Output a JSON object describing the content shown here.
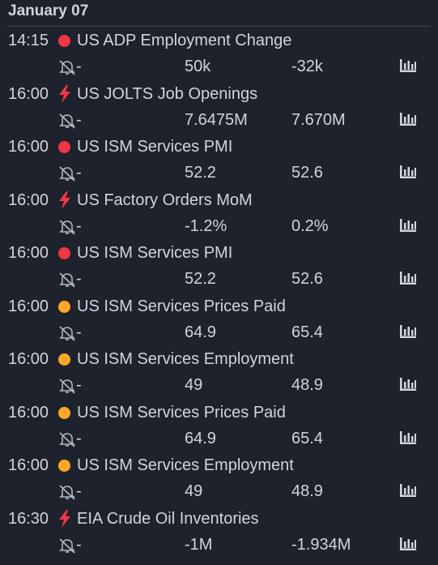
{
  "header": {
    "title": "January 07"
  },
  "events": [
    {
      "time": "14:15",
      "title": "US ADP Employment Change",
      "actual": "-",
      "forecast": "50k",
      "previous": "-32k"
    },
    {
      "time": "16:00",
      "title": "US JOLTS Job Openings",
      "actual": "-",
      "forecast": "7.6475M",
      "previous": "7.670M"
    },
    {
      "time": "16:00",
      "title": "US ISM Services PMI",
      "actual": "-",
      "forecast": "52.2",
      "previous": "52.6"
    },
    {
      "time": "16:00",
      "title": "US Factory Orders MoM",
      "actual": "-",
      "forecast": "-1.2%",
      "previous": "0.2%"
    },
    {
      "time": "16:00",
      "title": "US ISM Services PMI",
      "actual": "-",
      "forecast": "52.2",
      "previous": "52.6"
    },
    {
      "time": "16:00",
      "title": "US ISM Services Prices Paid",
      "actual": "-",
      "forecast": "64.9",
      "previous": "65.4"
    },
    {
      "time": "16:00",
      "title": "US ISM Services Employment",
      "actual": "-",
      "forecast": "49",
      "previous": "48.9"
    },
    {
      "time": "16:00",
      "title": "US ISM Services Prices Paid",
      "actual": "-",
      "forecast": "64.9",
      "previous": "65.4"
    },
    {
      "time": "16:00",
      "title": "US ISM Services Employment",
      "actual": "-",
      "forecast": "49",
      "previous": "48.9"
    },
    {
      "time": "16:30",
      "title": "EIA Crude Oil Inventories",
      "actual": "-",
      "forecast": "-1M",
      "previous": "-1.934M"
    }
  ]
}
